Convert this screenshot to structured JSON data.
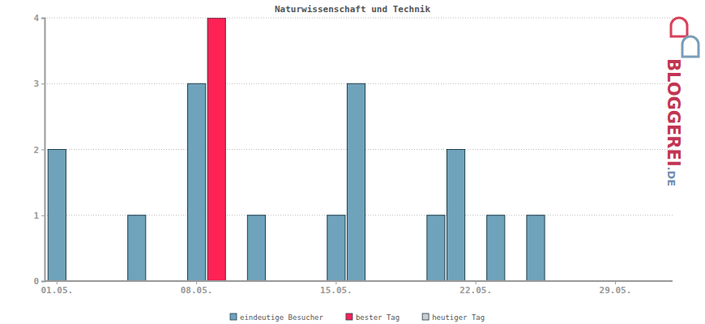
{
  "chart_data": {
    "type": "bar",
    "title": "Naturwissenschaft und Technik",
    "categories": [
      "01.05.",
      null,
      null,
      null,
      null,
      null,
      null,
      "08.05.",
      null,
      null,
      null,
      null,
      null,
      null,
      "15.05.",
      null,
      null,
      null,
      null,
      null,
      null,
      "22.05.",
      null,
      null,
      null,
      null,
      null,
      null,
      "29.05.",
      null,
      null
    ],
    "series": [
      {
        "name": "eindeutige Besucher",
        "color": "#6fa3bb",
        "values": [
          2,
          0,
          0,
          0,
          1,
          0,
          0,
          3,
          null,
          0,
          1,
          0,
          0,
          0,
          1,
          3,
          0,
          0,
          0,
          1,
          2,
          0,
          1,
          0,
          1,
          0,
          0,
          0,
          0,
          0,
          0
        ]
      },
      {
        "name": "bester Tag",
        "color": "#ff2255",
        "values": [
          null,
          null,
          null,
          null,
          null,
          null,
          null,
          null,
          4,
          null,
          null,
          null,
          null,
          null,
          null,
          null,
          null,
          null,
          null,
          null,
          null,
          null,
          null,
          null,
          null,
          null,
          null,
          null,
          null,
          null,
          null
        ]
      },
      {
        "name": "heutiger Tag",
        "color": "#cccccc",
        "values": [
          null,
          null,
          null,
          null,
          null,
          null,
          null,
          null,
          null,
          null,
          null,
          null,
          null,
          null,
          null,
          null,
          null,
          null,
          null,
          null,
          null,
          null,
          null,
          null,
          null,
          null,
          null,
          null,
          null,
          null,
          null
        ]
      }
    ],
    "ylim": [
      0,
      4
    ],
    "yticks": [
      0,
      1,
      2,
      3,
      4
    ],
    "grid": true,
    "legend": "bottom",
    "watermark": [
      "BLOGGEREI",
      ".DE"
    ]
  }
}
